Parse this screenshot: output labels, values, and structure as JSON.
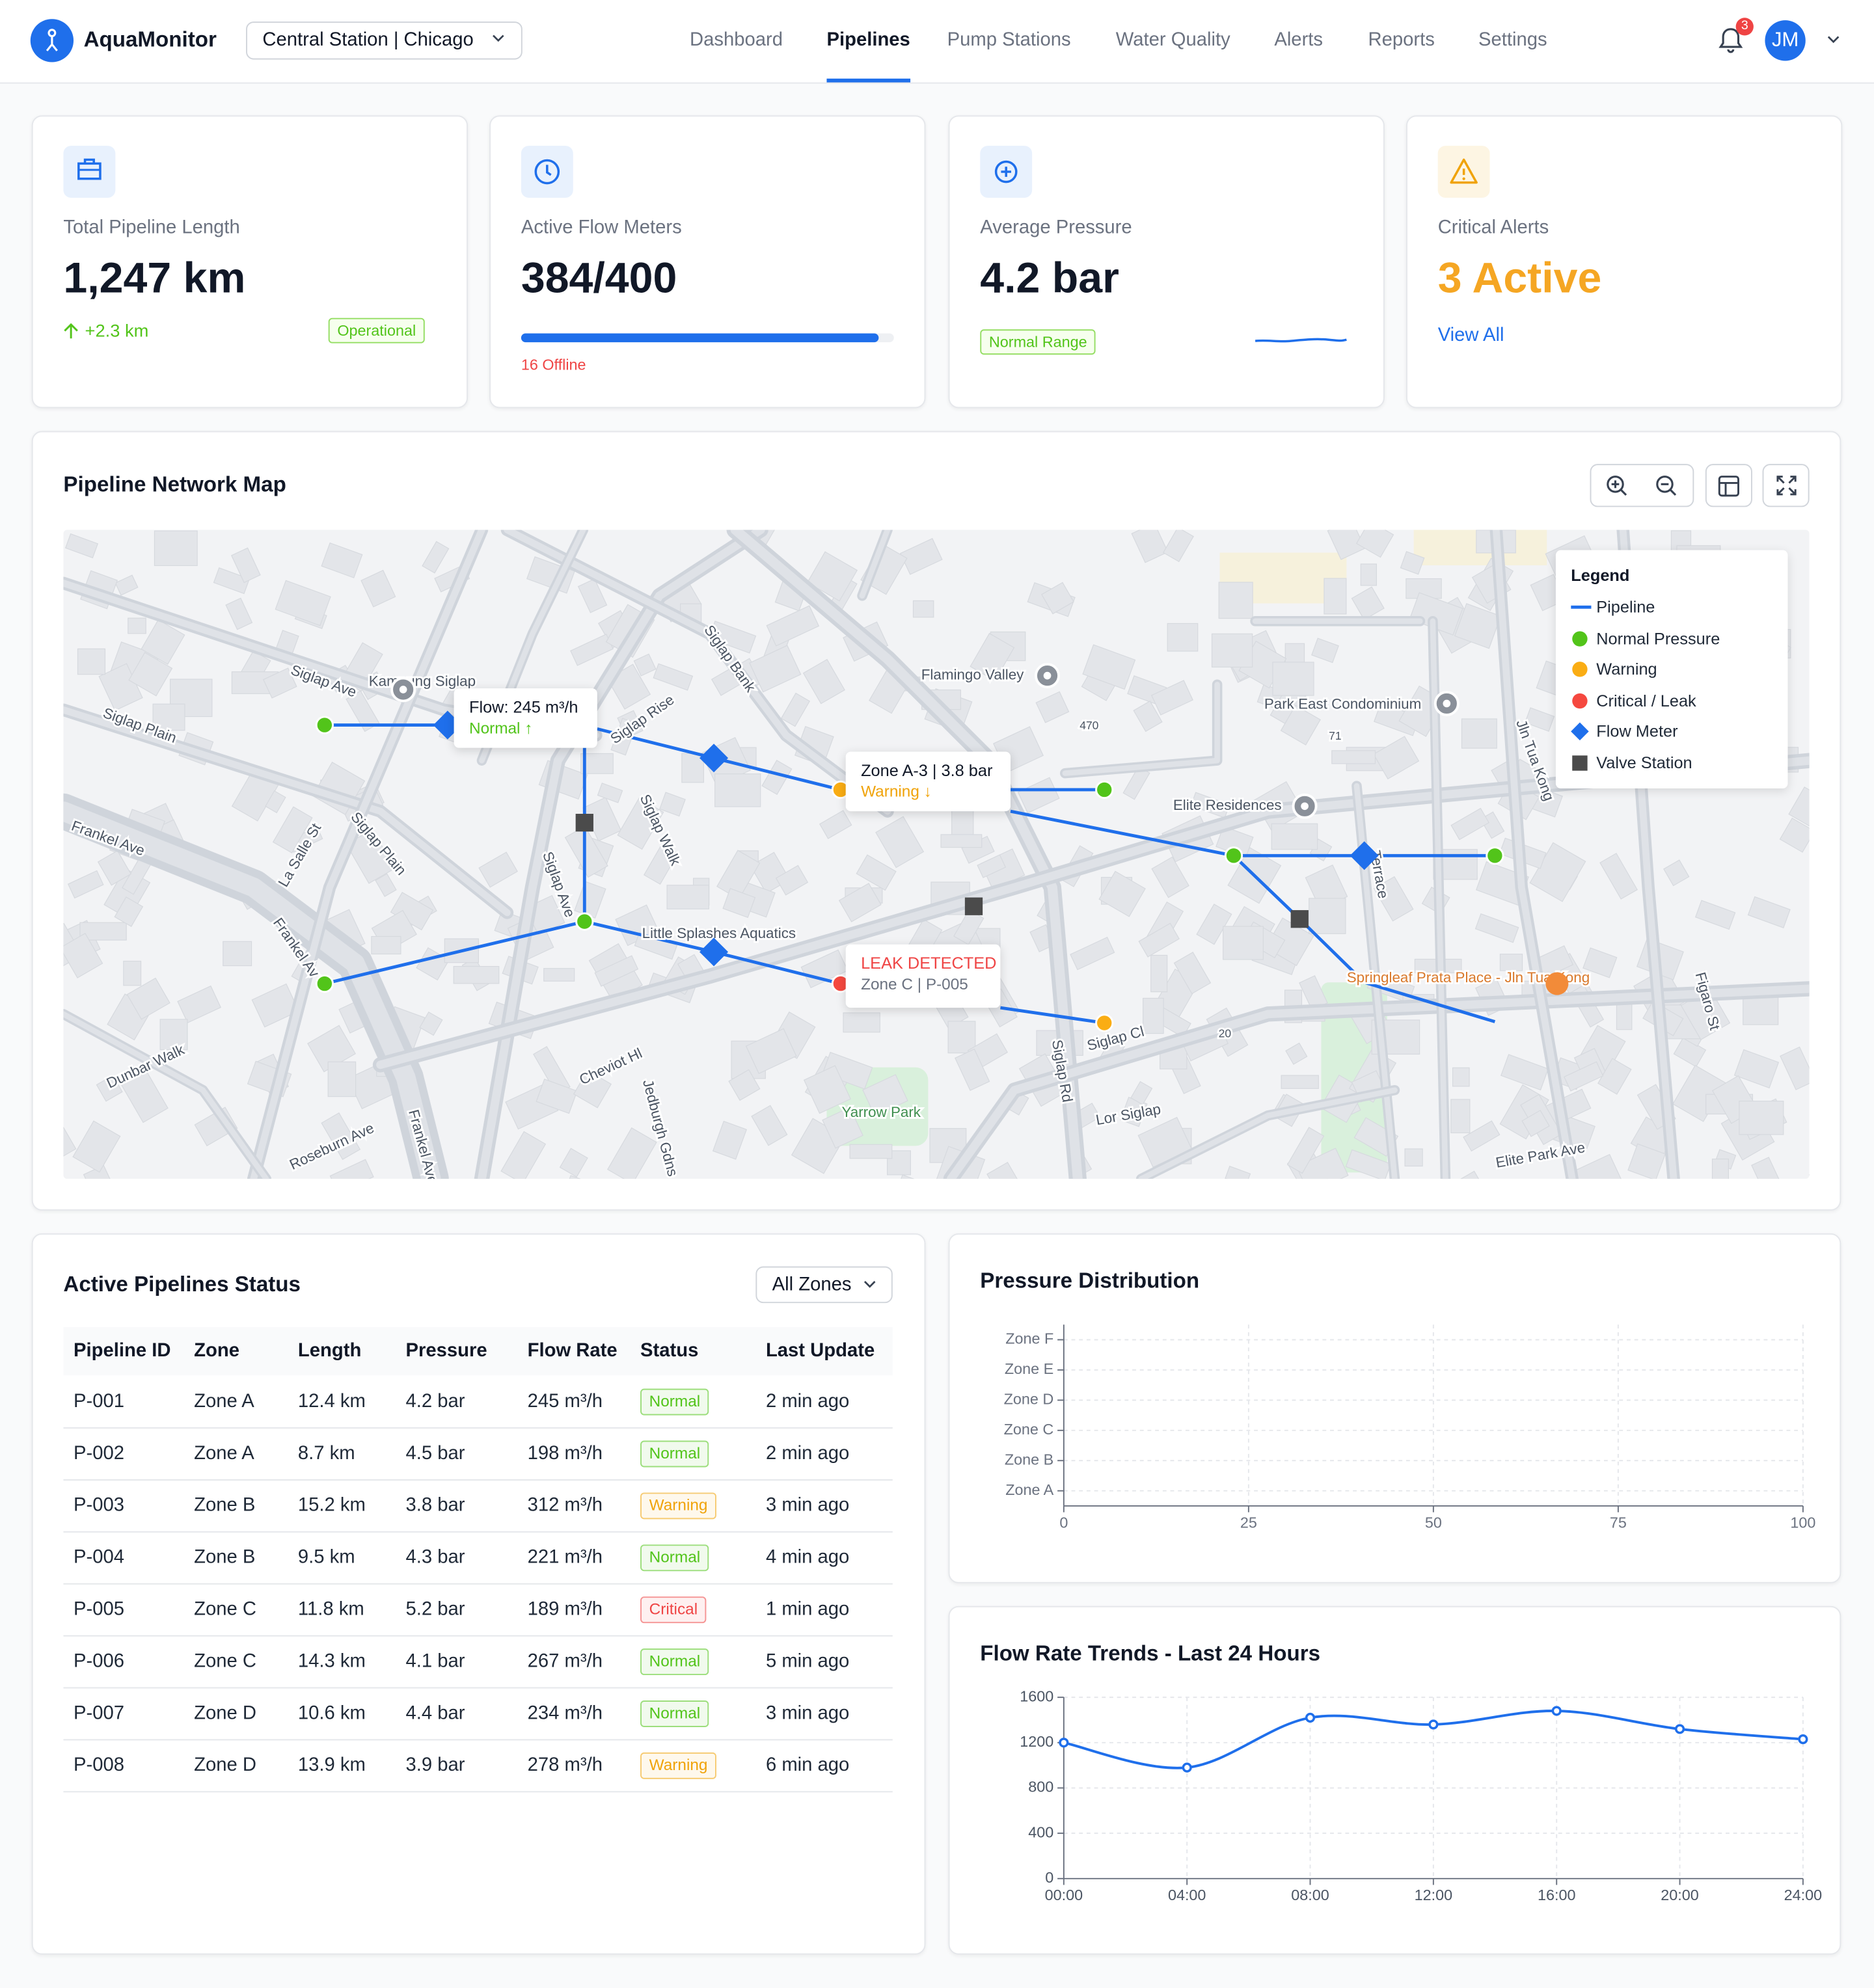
{
  "header": {
    "brand": "AquaMonitor",
    "location": "Central Station | Chicago",
    "nav": [
      "Dashboard",
      "Pipelines",
      "Pump Stations",
      "Water Quality",
      "Alerts",
      "Reports",
      "Settings"
    ],
    "active_nav": 1,
    "notification_count": 3,
    "avatar": "JM"
  },
  "stats": [
    {
      "label": "Total Pipeline Length",
      "value": "1,247 km",
      "delta": "+2.3 km",
      "badge": "Operational"
    },
    {
      "label": "Active Flow Meters",
      "value": "384/400",
      "note": "16 Offline"
    },
    {
      "label": "Average Pressure",
      "value": "4.2 bar",
      "badge": "Normal Range"
    },
    {
      "label": "Critical Alerts",
      "value": "3 Active",
      "link": "View All"
    }
  ],
  "map": {
    "title": "Pipeline Network Map",
    "legend": {
      "title": "Legend",
      "items": [
        "Pipeline",
        "Normal Pressure",
        "Warning",
        "Critical / Leak",
        "Flow Meter",
        "Valve Station"
      ]
    },
    "tooltips": [
      {
        "title": "Flow: 245 m³/h",
        "status": "Normal ↑"
      },
      {
        "title": "Zone A-3 | 3.8 bar",
        "status": "Warning ↓"
      },
      {
        "title": "LEAK DETECTED",
        "status": "Zone C | P-005"
      }
    ],
    "labels": [
      "Siglap Ave",
      "Kampung Siglap",
      "Siglap Plain",
      "Siglap Rise",
      "Siglap Bank",
      "Flamingo Valley",
      "Park East Condominium",
      "Jln Tua Kong",
      "Elite Residences",
      "Frankel Ave",
      "La Salle St",
      "Siglap Plain",
      "Siglap Walk",
      "Siglap Ave",
      "Frankel Av",
      "Little Splashes Aquatics",
      "Springleaf Prata Place - Jln Tua Kong",
      "Dunbar Walk",
      "Cheviot Hl",
      "Jedburgh Gdns",
      "Siglap Rd",
      "Siglap Cl",
      "Yarrow Park",
      "Lor Siglap",
      "Roseburn Ave",
      "Frankel Ave",
      "Elite Park Ave",
      "Figaro St",
      "470",
      "71",
      "20",
      "Terrace"
    ]
  },
  "table": {
    "title": "Active Pipelines Status",
    "filter": "All Zones",
    "columns": [
      "Pipeline ID",
      "Zone",
      "Length",
      "Pressure",
      "Flow Rate",
      "Status",
      "Last Update"
    ],
    "rows": [
      [
        "P-001",
        "Zone A",
        "12.4 km",
        "4.2 bar",
        "245 m³/h",
        "Normal",
        "2 min ago"
      ],
      [
        "P-002",
        "Zone A",
        "8.7 km",
        "4.5 bar",
        "198 m³/h",
        "Normal",
        "2 min ago"
      ],
      [
        "P-003",
        "Zone B",
        "15.2 km",
        "3.8 bar",
        "312 m³/h",
        "Warning",
        "3 min ago"
      ],
      [
        "P-004",
        "Zone B",
        "9.5 km",
        "4.3 bar",
        "221 m³/h",
        "Normal",
        "4 min ago"
      ],
      [
        "P-005",
        "Zone C",
        "11.8 km",
        "5.2 bar",
        "189 m³/h",
        "Critical",
        "1 min ago"
      ],
      [
        "P-006",
        "Zone C",
        "14.3 km",
        "4.1 bar",
        "267 m³/h",
        "Normal",
        "5 min ago"
      ],
      [
        "P-007",
        "Zone D",
        "10.6 km",
        "4.4 bar",
        "234 m³/h",
        "Normal",
        "3 min ago"
      ],
      [
        "P-008",
        "Zone D",
        "13.9 km",
        "3.9 bar",
        "278 m³/h",
        "Warning",
        "6 min ago"
      ]
    ],
    "status_colors": {
      "Normal": "#52c41a",
      "Warning": "#f0a30a",
      "Critical": "#ef4444"
    }
  },
  "chart_data": [
    {
      "type": "bar",
      "orientation": "horizontal",
      "title": "Pressure Distribution",
      "categories": [
        "Zone A",
        "Zone B",
        "Zone C",
        "Zone D",
        "Zone E",
        "Zone F"
      ],
      "values": [
        null,
        null,
        null,
        null,
        null,
        null
      ],
      "color": "#1f6feb",
      "xlim": [
        0,
        100
      ],
      "xticks": [
        0,
        25,
        50,
        75,
        100
      ],
      "grid": true
    },
    {
      "type": "line",
      "title": "Flow Rate Trends - Last 24 Hours",
      "categories": [
        "00:00",
        "04:00",
        "08:00",
        "12:00",
        "16:00",
        "20:00",
        "24:00"
      ],
      "values": [
        1200,
        980,
        1420,
        1360,
        1480,
        1320,
        1230
      ],
      "color": "#1f6feb",
      "ylim": [
        0,
        1600
      ],
      "yticks": [
        0,
        400,
        800,
        1200,
        1600
      ],
      "grid": true
    }
  ]
}
